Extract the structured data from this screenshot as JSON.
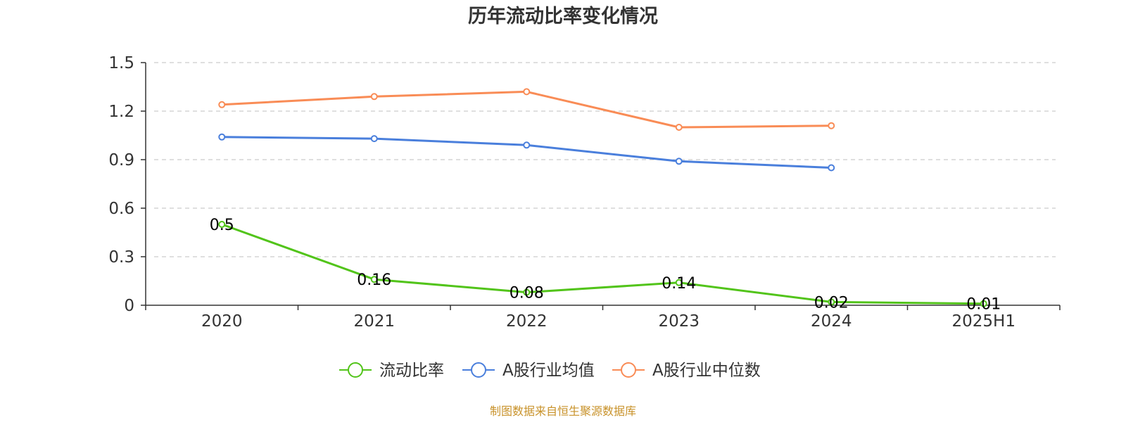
{
  "chart_data": {
    "type": "line",
    "title": "历年流动比率变化情况",
    "categories": [
      "2020",
      "2021",
      "2022",
      "2023",
      "2024",
      "2025H1"
    ],
    "ylim": [
      0,
      1.5
    ],
    "yticks": [
      0,
      0.3,
      0.6,
      0.9,
      1.2,
      1.5
    ],
    "ytick_labels": [
      "0",
      "0.3",
      "0.6",
      "0.9",
      "1.2",
      "1.5"
    ],
    "grid": true,
    "legend_position": "bottom-center",
    "series": [
      {
        "name": "流动比率",
        "color": "#52c41a",
        "values": [
          0.5,
          0.16,
          0.08,
          0.14,
          0.02,
          0.01
        ],
        "data_labels": [
          "0.5",
          "0.16",
          "0.08",
          "0.14",
          "0.02",
          "0.01"
        ]
      },
      {
        "name": "A股行业均值",
        "color": "#4a7fdc",
        "values": [
          1.04,
          1.03,
          0.99,
          0.89,
          0.85,
          null
        ]
      },
      {
        "name": "A股行业中位数",
        "color": "#f98c56",
        "values": [
          1.24,
          1.29,
          1.32,
          1.1,
          1.11,
          null
        ]
      }
    ]
  },
  "source": {
    "text": "制图数据来自恒生聚源数据库",
    "color": "#c8922a"
  }
}
